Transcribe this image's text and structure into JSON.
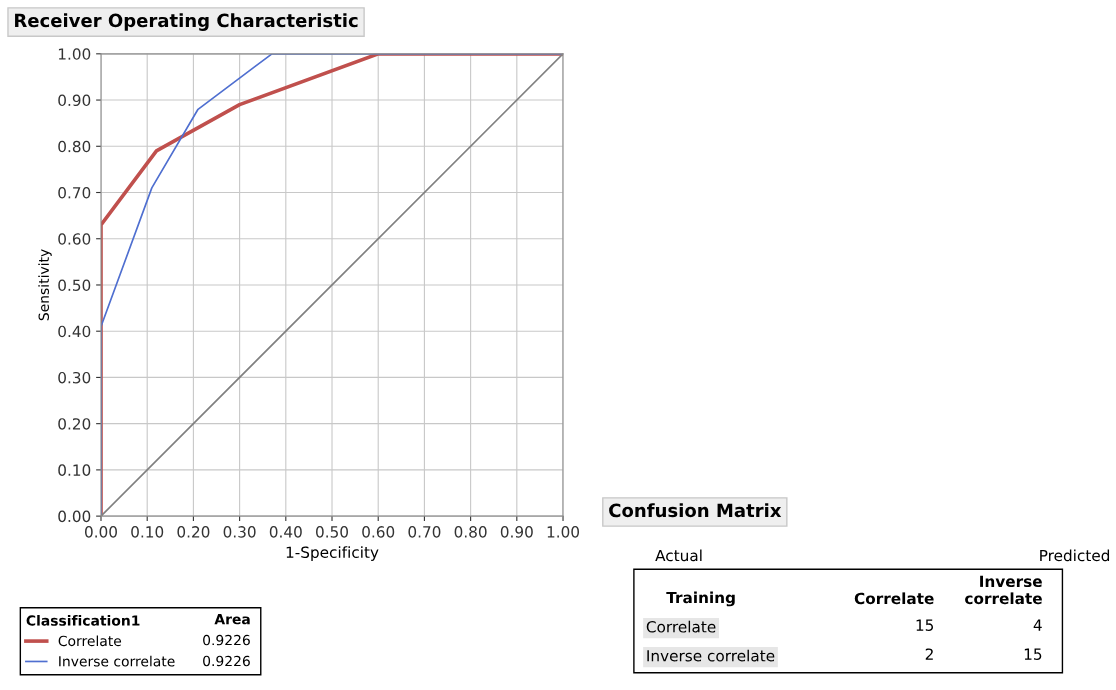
{
  "chart_data": [
    {
      "type": "line",
      "title": "Receiver Operating Characteristic",
      "xlabel": "1-Specificity",
      "ylabel": "Sensitivity",
      "legend_title": "Classification1",
      "legend": "bottom",
      "series": [
        {
          "name": "Correlate",
          "color": "#c0504d",
          "x": [
            0,
            0,
            0.12,
            0.3,
            0.6,
            1
          ],
          "values": [
            0,
            0.63,
            0.79,
            0.89,
            1,
            1
          ]
        },
        {
          "name": "Inverse correlate",
          "color": "#4f6fd0",
          "x": [
            0,
            0,
            0.11,
            0.21,
            0.37,
            1
          ],
          "values": [
            0,
            0.41,
            0.71,
            0.88,
            1,
            1
          ]
        },
        {
          "color": "#808080",
          "x": [
            0,
            1
          ],
          "values": [
            0,
            1
          ]
        }
      ],
      "annotations": [
        "Area",
        "0.9226",
        "0.9226"
      ],
      "xlim": [
        0,
        1
      ],
      "ylim": [
        0,
        1
      ],
      "xticks": [
        {
          "value": 0,
          "label": "0.00"
        },
        {
          "value": 0.1,
          "label": "0.10"
        },
        {
          "value": 0.2,
          "label": "0.20"
        },
        {
          "value": 0.3,
          "label": "0.30"
        },
        {
          "value": 0.4,
          "label": "0.40"
        },
        {
          "value": 0.5,
          "label": "0.50"
        },
        {
          "value": 0.6,
          "label": "0.60"
        },
        {
          "value": 0.7,
          "label": "0.70"
        },
        {
          "value": 0.8,
          "label": "0.80"
        },
        {
          "value": 0.9,
          "label": "0.90"
        },
        {
          "value": 1,
          "label": "1.00"
        }
      ],
      "yticks": [
        {
          "value": 0,
          "label": "0.00"
        },
        {
          "value": 0.1,
          "label": "0.10"
        },
        {
          "value": 0.2,
          "label": "0.20"
        },
        {
          "value": 0.3,
          "label": "0.30"
        },
        {
          "value": 0.4,
          "label": "0.40"
        },
        {
          "value": 0.5,
          "label": "0.50"
        },
        {
          "value": 0.6,
          "label": "0.60"
        },
        {
          "value": 0.7,
          "label": "0.70"
        },
        {
          "value": 0.8,
          "label": "0.80"
        },
        {
          "value": 0.9,
          "label": "0.90"
        },
        {
          "value": 1,
          "label": "1.00"
        }
      ],
      "grid": true,
      "marker": "none",
      "line_style": "solid"
    },
    {
      "type": "heatmap",
      "title": "Confusion Matrix",
      "xlabel": "Predicted",
      "ylabel": "Actual",
      "categories": [
        "Correlate",
        "Inverse correlate"
      ],
      "y_categories": [
        "Correlate",
        "Inverse correlate"
      ],
      "cells": [
        [
          15,
          4
        ],
        [
          2,
          15
        ]
      ],
      "data_labels": true,
      "annotations": [
        "Training"
      ]
    }
  ]
}
